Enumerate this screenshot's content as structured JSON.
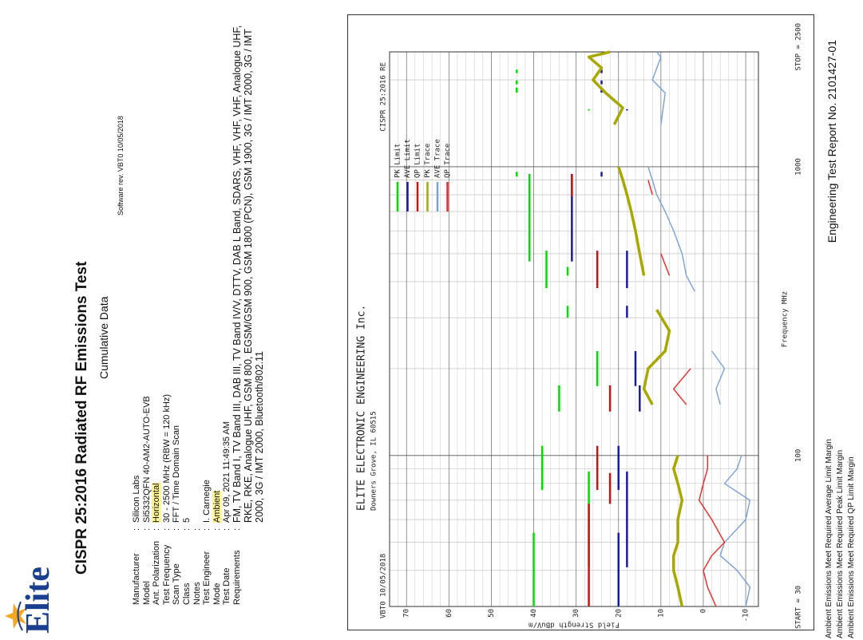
{
  "logo": "Elite",
  "title": "CISPR 25:2016 Radiated RF Emissions Test",
  "subtitle": "Cumulative Data",
  "software": "Software rev. VBT0 10/05/2018",
  "separator": ":",
  "fields": [
    {
      "label": "Manufacturer",
      "value": "Silicon Labs"
    },
    {
      "label": "Model",
      "value": "Si5332QFN 40-AM2-AUTO-EVB"
    },
    {
      "label": "Ant. Polarization",
      "value": "Horizontal",
      "highlight": true
    },
    {
      "label": "Test Frequency",
      "value": "30 - 2500 MHz (RBW = 120 kHz)"
    },
    {
      "label": "Scan Type",
      "value": "FFT / Time Domain Scan"
    },
    {
      "label": "Class",
      "value": "5"
    },
    {
      "label": "Notes"
    },
    {
      "label": "Test Engineer",
      "value": "I. Carnegie"
    },
    {
      "label": "Mode",
      "value": "Ambient",
      "highlight": true
    },
    {
      "label": "Test Date",
      "value": "Apr 09, 2021 11:49:35 AM"
    },
    {
      "label": "Requirements",
      "value": "FM, TV Band I, TV Band III, DAB III, TV Band IV/V, DTTV, DAB L Band, SDARS, VHF, VHF, VHF, Analogue UHF, RKE, RKE, Analogue UHF, GSM 800, EGSM/GSM 900, GSM 1800 (PCN), GSM 1900, 3G / IMT 2000, 3G / IMT 2000, 3G / IMT 2000, Bluetooth/802.11"
    }
  ],
  "chart_data": {
    "type": "line",
    "title": "ELITE ELECTRONIC ENGINEERING Inc.",
    "subtitle": "Downers Grove, IL 60515",
    "annotation_left": "VBT0 10/05/2018",
    "annotation_right": "CISPR 25:2016 RE",
    "x_label": "Frequency MHz",
    "y_label": "Field Strength dBuV/m",
    "xscale": "log",
    "xlim": [
      30,
      2500
    ],
    "xticks": [
      {
        "value": 30,
        "label": "START = 30"
      },
      100,
      1000,
      {
        "value": 2500,
        "label": "STOP = 2500"
      }
    ],
    "xgrid": [
      40,
      50,
      60,
      70,
      80,
      90,
      200,
      300,
      400,
      500,
      600,
      700,
      800,
      900,
      2000
    ],
    "ylim": [
      -13,
      74
    ],
    "yticks": [
      -10,
      0,
      10,
      20,
      30,
      40,
      50,
      60,
      70
    ],
    "ygrid": [
      -12,
      -8,
      -6,
      -4,
      -2,
      2,
      4,
      6,
      8,
      12,
      14,
      16,
      18,
      22,
      24,
      26,
      28,
      32,
      34,
      36,
      38,
      42,
      44,
      46,
      48,
      52,
      54,
      56,
      58,
      62,
      64,
      66,
      68,
      72
    ],
    "grid": true,
    "series": [
      {
        "name": "PK Limit",
        "color": "#00dd00",
        "x_start": [
          30,
          41,
          76,
          142,
          174,
          300,
          380,
          420,
          470,
          925,
          1567,
          1805,
          1930,
          2110
        ],
        "x_end": [
          54,
          88,
          108,
          175,
          230,
          330,
          512,
          450,
          944,
          960,
          1583,
          1880,
          1990,
          2170
        ],
        "values": [
          40,
          27,
          38,
          34,
          25,
          32,
          37,
          32,
          41,
          44,
          27,
          44,
          44,
          44
        ]
      },
      {
        "name": "AVE Limit",
        "color": "#1a1aa0",
        "x_start": [
          30,
          41,
          76,
          142,
          174,
          300,
          380,
          470,
          925,
          1567,
          1805,
          1930,
          2110
        ],
        "x_end": [
          54,
          88,
          108,
          175,
          230,
          330,
          512,
          944,
          960,
          1583,
          1880,
          1990,
          2170
        ],
        "values": [
          20,
          18,
          20,
          15,
          16,
          18,
          18,
          31,
          24,
          18,
          24,
          24,
          24
        ]
      },
      {
        "name": "QP Limit",
        "color": "#c81414",
        "x_start": [
          30,
          68,
          76,
          142,
          380,
          790
        ],
        "x_end": [
          68,
          87,
          108,
          175,
          512,
          944
        ],
        "values": [
          27,
          22,
          25,
          22,
          25,
          31
        ]
      },
      {
        "name": "PK Trace",
        "color": "#a8a800",
        "x": [
          30,
          35,
          40,
          45,
          50,
          60,
          70,
          80,
          90,
          100,
          130,
          150,
          170,
          200,
          230,
          270,
          320,
          370,
          420,
          500,
          600,
          700,
          800,
          900,
          1000,
          1200,
          1400,
          1600,
          1800,
          2000,
          2200,
          2400,
          2500
        ],
        "values": [
          5,
          6,
          7,
          7,
          6,
          6,
          5,
          6,
          7,
          6,
          null,
          12,
          14,
          13,
          9,
          8,
          11,
          null,
          14,
          15,
          16,
          17,
          18,
          19,
          20,
          null,
          21,
          19,
          23,
          26,
          24,
          27,
          22
        ]
      },
      {
        "name": "AVE Trace",
        "color": "#7aa0dc",
        "x": [
          30,
          35,
          40,
          45,
          50,
          60,
          70,
          80,
          90,
          100,
          130,
          150,
          170,
          200,
          230,
          300,
          370,
          420,
          500,
          600,
          700,
          800,
          900,
          1000,
          1200,
          1400,
          1800,
          2000,
          2400,
          2500
        ],
        "values": [
          -10,
          -11,
          -8,
          -4,
          -5,
          -10,
          -11,
          -5,
          -8,
          -9,
          null,
          -4,
          -3,
          -5,
          -2,
          null,
          2,
          4,
          5,
          7,
          9,
          11,
          12,
          13,
          null,
          10,
          9,
          12,
          10,
          11
        ]
      },
      {
        "name": "QP Trace",
        "color": "#ff2020",
        "x": [
          30,
          35,
          40,
          45,
          50,
          60,
          70,
          80,
          90,
          100,
          130,
          150,
          170,
          200,
          230,
          420,
          500,
          600,
          800,
          900
        ],
        "values": [
          -3,
          -1,
          0,
          -2,
          -5,
          -2,
          1,
          0,
          -1,
          -1,
          null,
          4,
          7,
          3,
          null,
          8,
          10,
          null,
          12,
          13
        ]
      }
    ]
  },
  "notes": [
    "Ambient Emissions Meet Required Average Limit Margin",
    "Ambient Emissions Meet Required Peak Limit Margin",
    "Ambient Emissions Meet Required QP Limit Margin"
  ],
  "footer": "Engineering Test Report No. 2101427-01"
}
